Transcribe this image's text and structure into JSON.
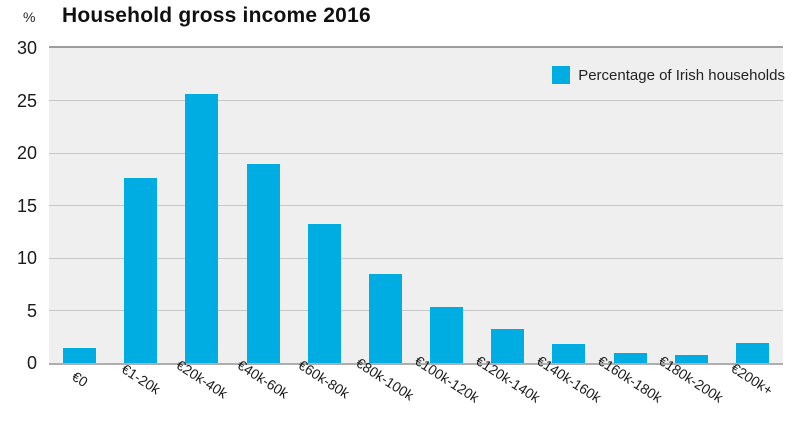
{
  "chart": {
    "title": "Household gross income 2016",
    "y_axis_unit": "%"
  },
  "legend": {
    "label": "Percentage of Irish households"
  },
  "chart_data": {
    "type": "bar",
    "title": "Household gross income 2016",
    "categories": [
      "€0",
      "€1-20k",
      "€20k-40k",
      "€40k-60k",
      "€60k-80k",
      "€80k-100k",
      "€100k-120k",
      "€120k-140k",
      "€140k-160k",
      "€160k-180k",
      "€180k-200k",
      "€200k+"
    ],
    "series": [
      {
        "name": "Percentage of Irish households",
        "values": [
          1.4,
          17.6,
          25.6,
          19.0,
          13.2,
          8.5,
          5.3,
          3.2,
          1.8,
          1.0,
          0.8,
          1.9
        ]
      }
    ],
    "xlabel": "",
    "ylabel": "%",
    "ylim": [
      0,
      30
    ],
    "yticks": [
      0,
      5,
      10,
      15,
      20,
      25,
      30
    ],
    "grid": true,
    "legend_position": "top-right",
    "colors": {
      "bar": "#00ADE3",
      "plot_background": "#EFEFEF",
      "gridline": "#C7C7C7",
      "axis_line": "#9E9E9E",
      "text": "#1A1A1A"
    }
  }
}
